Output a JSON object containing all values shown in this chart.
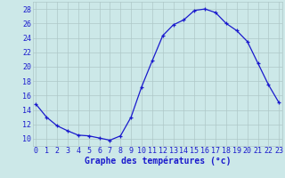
{
  "hours": [
    0,
    1,
    2,
    3,
    4,
    5,
    6,
    7,
    8,
    9,
    10,
    11,
    12,
    13,
    14,
    15,
    16,
    17,
    18,
    19,
    20,
    21,
    22,
    23
  ],
  "temps": [
    14.8,
    13.0,
    11.8,
    11.1,
    10.5,
    10.4,
    10.1,
    9.8,
    10.4,
    13.0,
    17.2,
    20.8,
    24.3,
    25.8,
    26.5,
    27.8,
    28.0,
    27.5,
    26.0,
    25.0,
    23.5,
    20.5,
    17.5,
    15.0
  ],
  "xlabel": "Graphe des températures (°c)",
  "ylim": [
    9,
    29
  ],
  "yticks": [
    10,
    12,
    14,
    16,
    18,
    20,
    22,
    24,
    26,
    28
  ],
  "xtick_labels": [
    "0",
    "1",
    "2",
    "3",
    "4",
    "5",
    "6",
    "7",
    "8",
    "9",
    "1011",
    "1213",
    "1415",
    "1617",
    "1819",
    "2021",
    "2223"
  ],
  "line_color": "#1a1acd",
  "bg_color": "#cce8e8",
  "grid_color": "#aec8c8",
  "text_color": "#1a1acd",
  "xlabel_fontsize": 7,
  "tick_fontsize": 6
}
